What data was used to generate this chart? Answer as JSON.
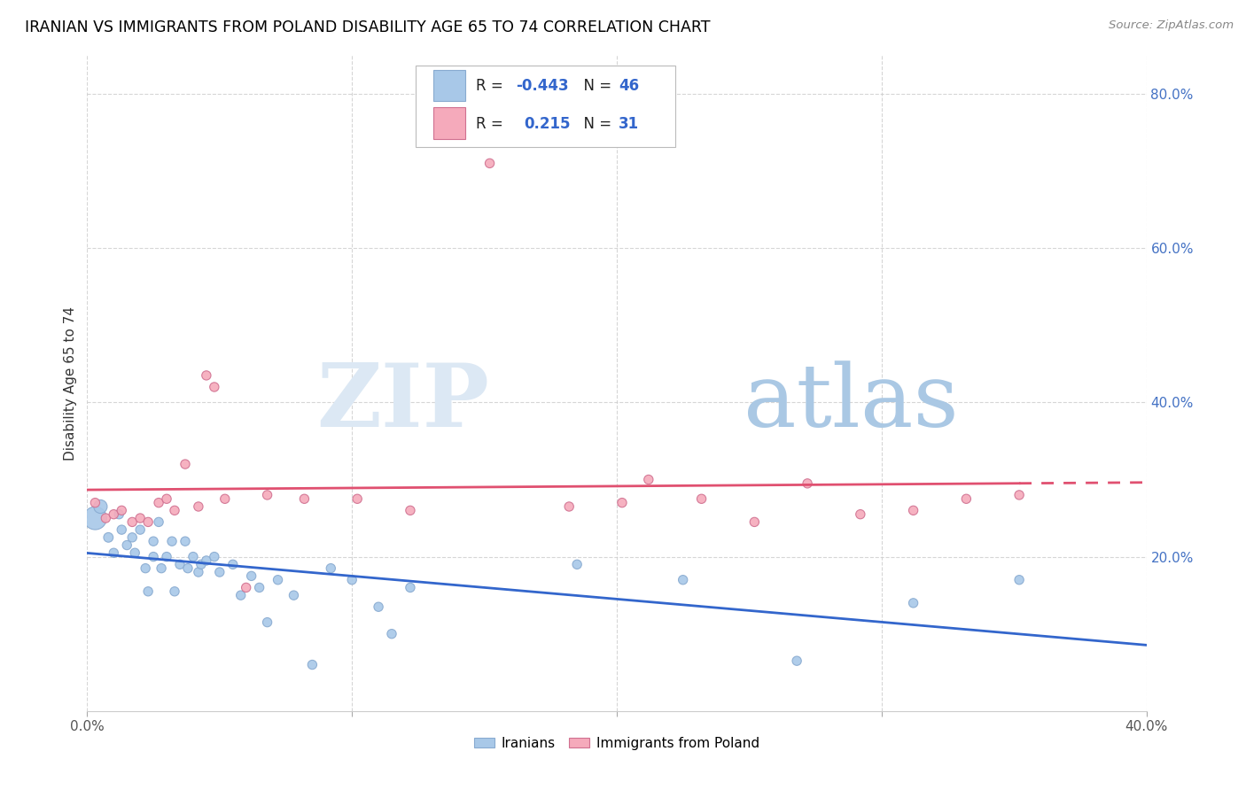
{
  "title": "IRANIAN VS IMMIGRANTS FROM POLAND DISABILITY AGE 65 TO 74 CORRELATION CHART",
  "source": "Source: ZipAtlas.com",
  "ylabel": "Disability Age 65 to 74",
  "xlim": [
    0.0,
    0.4
  ],
  "ylim": [
    0.0,
    0.85
  ],
  "ytick_labels": [
    "20.0%",
    "40.0%",
    "60.0%",
    "80.0%"
  ],
  "ytick_vals": [
    0.2,
    0.4,
    0.6,
    0.8
  ],
  "iranians_R": -0.443,
  "iranians_N": 46,
  "poland_R": 0.215,
  "poland_N": 31,
  "blue_color": "#a8c8e8",
  "pink_color": "#f5aabb",
  "blue_line_color": "#3366cc",
  "pink_line_color": "#e05070",
  "iranians_x": [
    0.003,
    0.005,
    0.008,
    0.01,
    0.012,
    0.013,
    0.015,
    0.017,
    0.018,
    0.02,
    0.022,
    0.023,
    0.025,
    0.025,
    0.027,
    0.028,
    0.03,
    0.032,
    0.033,
    0.035,
    0.037,
    0.038,
    0.04,
    0.042,
    0.043,
    0.045,
    0.048,
    0.05,
    0.055,
    0.058,
    0.062,
    0.065,
    0.068,
    0.072,
    0.078,
    0.085,
    0.092,
    0.1,
    0.11,
    0.115,
    0.122,
    0.185,
    0.225,
    0.268,
    0.312,
    0.352
  ],
  "iranians_y": [
    0.25,
    0.265,
    0.225,
    0.205,
    0.255,
    0.235,
    0.215,
    0.225,
    0.205,
    0.235,
    0.185,
    0.155,
    0.22,
    0.2,
    0.245,
    0.185,
    0.2,
    0.22,
    0.155,
    0.19,
    0.22,
    0.185,
    0.2,
    0.18,
    0.19,
    0.195,
    0.2,
    0.18,
    0.19,
    0.15,
    0.175,
    0.16,
    0.115,
    0.17,
    0.15,
    0.06,
    0.185,
    0.17,
    0.135,
    0.1,
    0.16,
    0.19,
    0.17,
    0.065,
    0.14,
    0.17
  ],
  "iranians_size": [
    350,
    120,
    60,
    55,
    55,
    55,
    55,
    55,
    55,
    55,
    55,
    55,
    55,
    55,
    55,
    55,
    55,
    55,
    55,
    55,
    55,
    55,
    55,
    55,
    55,
    55,
    55,
    55,
    55,
    55,
    55,
    55,
    55,
    55,
    55,
    55,
    55,
    55,
    55,
    55,
    55,
    55,
    55,
    55,
    55,
    55
  ],
  "poland_x": [
    0.003,
    0.007,
    0.01,
    0.013,
    0.017,
    0.02,
    0.023,
    0.027,
    0.03,
    0.033,
    0.037,
    0.042,
    0.045,
    0.048,
    0.052,
    0.06,
    0.068,
    0.082,
    0.102,
    0.122,
    0.152,
    0.182,
    0.202,
    0.212,
    0.232,
    0.252,
    0.272,
    0.292,
    0.312,
    0.332,
    0.352
  ],
  "poland_y": [
    0.27,
    0.25,
    0.255,
    0.26,
    0.245,
    0.25,
    0.245,
    0.27,
    0.275,
    0.26,
    0.32,
    0.265,
    0.435,
    0.42,
    0.275,
    0.16,
    0.28,
    0.275,
    0.275,
    0.26,
    0.71,
    0.265,
    0.27,
    0.3,
    0.275,
    0.245,
    0.295,
    0.255,
    0.26,
    0.275,
    0.28
  ],
  "poland_size": [
    55,
    55,
    55,
    55,
    55,
    55,
    55,
    55,
    55,
    55,
    55,
    55,
    55,
    55,
    55,
    55,
    55,
    55,
    55,
    55,
    55,
    55,
    55,
    55,
    55,
    55,
    55,
    55,
    55,
    55,
    55
  ]
}
